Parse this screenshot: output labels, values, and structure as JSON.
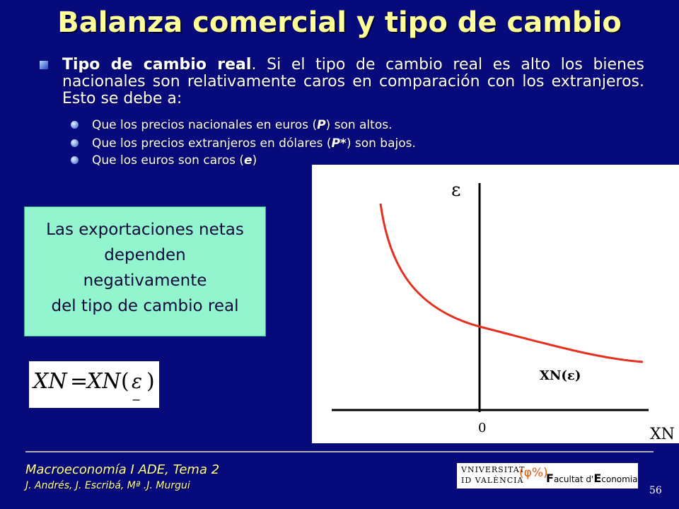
{
  "title": "Balanza comercial y tipo de cambio",
  "main_point": {
    "bold_lead": "Tipo de cambio real",
    "text": ". Si el tipo de cambio real es alto los bienes nacionales son relativamente caros en comparación con los extranjeros. Esto se debe a:"
  },
  "sub_points": [
    {
      "before": "Que los precios nacionales en euros (",
      "emph": "P",
      "after": ") son altos."
    },
    {
      "before": "Que los precios extranjeros en dólares (",
      "emph": "P*",
      "after": ") son bajos."
    },
    {
      "before": "Que los euros son caros (",
      "emph": "e",
      "after": ")"
    }
  ],
  "callout": {
    "lines": [
      "Las exportaciones netas",
      "dependen",
      "negativamente",
      "del tipo de cambio real"
    ]
  },
  "formula": {
    "lhs": "XN",
    "equals": "=",
    "rhs_func": "XN",
    "rhs_arg": "ε",
    "sign_below": "−"
  },
  "graph": {
    "y_axis_label": "ε",
    "x_axis_label": "XN",
    "origin_label": "0",
    "curve_label": "XN(ε)",
    "curve_color": "#e53020"
  },
  "footer": {
    "course": "Macroeconomía I ADE, Tema 2",
    "authors": "J. Andrés, J. Escribá, Mª .J. Murgui",
    "page_number": "56"
  },
  "logo": {
    "university_line1": "VNIVERSITAT",
    "university_line2": "ID VALÈNCIA",
    "mark": "(φ%)",
    "faculty_f": "F",
    "faculty_mid": "acultat ",
    "faculty_d": "d'",
    "faculty_e": "E",
    "faculty_end": "conomia"
  },
  "colors": {
    "background": "#070a7a",
    "title": "#ffff99",
    "callout_bg": "#93f5ce"
  }
}
